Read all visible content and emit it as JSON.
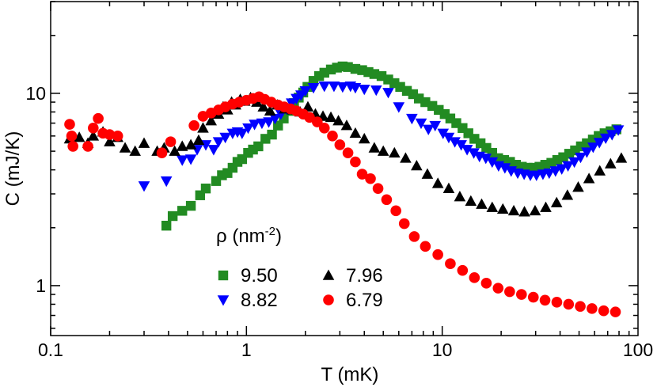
{
  "chart_data": {
    "type": "scatter",
    "xlabel": "T  (mK)",
    "ylabel": "C  (mJ/K)",
    "x_scale": "log",
    "y_scale": "log",
    "xlim": [
      0.1,
      100
    ],
    "ylim": [
      0.55,
      30
    ],
    "x_ticks": [
      {
        "v": 0.1,
        "label": "0.1"
      },
      {
        "v": 1,
        "label": "1"
      },
      {
        "v": 10,
        "label": "10"
      },
      {
        "v": 100,
        "label": "100"
      }
    ],
    "y_ticks": [
      {
        "v": 1,
        "label": "1"
      },
      {
        "v": 10,
        "label": "10"
      }
    ],
    "grid": false,
    "legend": {
      "title": "ρ (nm",
      "title_sup": "-2",
      "title_end": ")",
      "placement": "bottom-center"
    },
    "series": [
      {
        "name": "9.50",
        "marker": "square",
        "color": "#228b22",
        "points": [
          [
            0.39,
            2.05
          ],
          [
            0.42,
            2.3
          ],
          [
            0.47,
            2.45
          ],
          [
            0.52,
            2.6
          ],
          [
            0.58,
            2.95
          ],
          [
            0.62,
            3.2
          ],
          [
            0.7,
            3.5
          ],
          [
            0.75,
            3.75
          ],
          [
            0.8,
            3.85
          ],
          [
            0.85,
            4.1
          ],
          [
            0.9,
            4.4
          ],
          [
            0.95,
            4.55
          ],
          [
            1.02,
            4.9
          ],
          [
            1.08,
            5.1
          ],
          [
            1.15,
            5.3
          ],
          [
            1.25,
            5.8
          ],
          [
            1.35,
            6.1
          ],
          [
            1.45,
            6.8
          ],
          [
            1.55,
            7.4
          ],
          [
            1.65,
            8.1
          ],
          [
            1.75,
            8.9
          ],
          [
            1.85,
            9.5
          ],
          [
            1.95,
            10.1
          ],
          [
            2.05,
            10.8
          ],
          [
            2.2,
            11.6
          ],
          [
            2.35,
            12.3
          ],
          [
            2.5,
            12.8
          ],
          [
            2.7,
            13.3
          ],
          [
            2.9,
            13.6
          ],
          [
            3.1,
            13.8
          ],
          [
            3.3,
            13.7
          ],
          [
            3.6,
            13.4
          ],
          [
            3.9,
            13.2
          ],
          [
            4.2,
            12.9
          ],
          [
            4.5,
            12.6
          ],
          [
            4.9,
            12.3
          ],
          [
            5.3,
            11.8
          ],
          [
            5.7,
            11.3
          ],
          [
            6.1,
            10.8
          ],
          [
            6.6,
            10.3
          ],
          [
            7.1,
            9.9
          ],
          [
            7.6,
            9.4
          ],
          [
            8.2,
            9.0
          ],
          [
            8.9,
            8.6
          ],
          [
            9.6,
            8.2
          ],
          [
            10.3,
            7.8
          ],
          [
            11.0,
            7.4
          ],
          [
            11.8,
            7.0
          ],
          [
            12.7,
            6.6
          ],
          [
            13.6,
            6.2
          ],
          [
            14.6,
            5.8
          ],
          [
            15.7,
            5.5
          ],
          [
            16.8,
            5.2
          ],
          [
            18,
            4.9
          ],
          [
            19.3,
            4.6
          ],
          [
            20.7,
            4.5
          ],
          [
            22.2,
            4.4
          ],
          [
            23.8,
            4.25
          ],
          [
            25.5,
            4.15
          ],
          [
            27.3,
            4.1
          ],
          [
            29.3,
            4.1
          ],
          [
            31.4,
            4.15
          ],
          [
            33.6,
            4.25
          ],
          [
            36.1,
            4.35
          ],
          [
            38.7,
            4.5
          ],
          [
            41.5,
            4.65
          ],
          [
            44.5,
            4.85
          ],
          [
            47.7,
            5.05
          ],
          [
            51.1,
            5.3
          ],
          [
            54.8,
            5.5
          ],
          [
            58.8,
            5.75
          ],
          [
            63,
            6.0
          ],
          [
            67.5,
            6.2
          ],
          [
            72.4,
            6.35
          ],
          [
            77.6,
            6.5
          ]
        ]
      },
      {
        "name": "8.82",
        "marker": "triangle-down",
        "color": "#0000ff",
        "points": [
          [
            0.3,
            3.3
          ],
          [
            0.39,
            3.5
          ],
          [
            0.47,
            4.5
          ],
          [
            0.52,
            4.55
          ],
          [
            0.56,
            5.1
          ],
          [
            0.62,
            5.4
          ],
          [
            0.68,
            5.1
          ],
          [
            0.72,
            5.6
          ],
          [
            0.78,
            5.9
          ],
          [
            0.85,
            6.2
          ],
          [
            0.9,
            6.3
          ],
          [
            0.95,
            6.2
          ],
          [
            1.02,
            6.6
          ],
          [
            1.1,
            6.9
          ],
          [
            1.2,
            7.0
          ],
          [
            1.3,
            7.1
          ],
          [
            1.4,
            7.4
          ],
          [
            1.5,
            7.8
          ],
          [
            1.6,
            8.3
          ],
          [
            1.7,
            8.9
          ],
          [
            1.8,
            9.4
          ],
          [
            1.9,
            9.8
          ],
          [
            2.0,
            10.3
          ],
          [
            2.2,
            10.7
          ],
          [
            2.5,
            10.9
          ],
          [
            2.8,
            10.9
          ],
          [
            3.1,
            10.8
          ],
          [
            3.4,
            10.9
          ],
          [
            3.6,
            10.7
          ],
          [
            4.0,
            10.5
          ],
          [
            4.6,
            10.4
          ],
          [
            5.3,
            10.1
          ],
          [
            6.0,
            8.5
          ],
          [
            7.0,
            7.4
          ],
          [
            7.8,
            7.0
          ],
          [
            8.5,
            6.5
          ],
          [
            9.2,
            6.8
          ],
          [
            10.1,
            6.2
          ],
          [
            10.8,
            5.9
          ],
          [
            11.6,
            5.6
          ],
          [
            12.5,
            5.4
          ],
          [
            13.4,
            5.1
          ],
          [
            14.5,
            4.9
          ],
          [
            15.5,
            4.7
          ],
          [
            16.7,
            4.6
          ],
          [
            18,
            4.4
          ],
          [
            19.4,
            4.2
          ],
          [
            20.9,
            4.1
          ],
          [
            22.5,
            3.95
          ],
          [
            24.3,
            3.85
          ],
          [
            26.2,
            3.8
          ],
          [
            28.2,
            3.75
          ],
          [
            30.3,
            3.75
          ],
          [
            32.7,
            3.8
          ],
          [
            35.2,
            3.85
          ],
          [
            37.9,
            3.95
          ],
          [
            40.8,
            4.05
          ],
          [
            43.9,
            4.2
          ],
          [
            47.3,
            4.4
          ],
          [
            50.9,
            4.65
          ],
          [
            54.8,
            4.95
          ],
          [
            59,
            5.25
          ],
          [
            63.5,
            5.55
          ],
          [
            68.4,
            5.85
          ],
          [
            73.7,
            6.1
          ],
          [
            79.3,
            6.45
          ]
        ]
      },
      {
        "name": "7.96",
        "marker": "triangle-up",
        "color": "#000000",
        "points": [
          [
            0.125,
            5.8
          ],
          [
            0.14,
            5.9
          ],
          [
            0.155,
            5.5
          ],
          [
            0.165,
            6.0
          ],
          [
            0.185,
            6.3
          ],
          [
            0.2,
            5.6
          ],
          [
            0.22,
            5.9
          ],
          [
            0.24,
            5.2
          ],
          [
            0.27,
            5.0
          ],
          [
            0.3,
            5.5
          ],
          [
            0.35,
            5.0
          ],
          [
            0.38,
            5.2
          ],
          [
            0.43,
            5.0
          ],
          [
            0.47,
            5.3
          ],
          [
            0.52,
            5.4
          ],
          [
            0.57,
            5.7
          ],
          [
            0.6,
            6.6
          ],
          [
            0.66,
            7.2
          ],
          [
            0.72,
            7.8
          ],
          [
            0.76,
            8.5
          ],
          [
            0.8,
            8.2
          ],
          [
            0.84,
            9.0
          ],
          [
            0.88,
            8.7
          ],
          [
            0.93,
            9.3
          ],
          [
            0.98,
            9.1
          ],
          [
            1.05,
            9.5
          ],
          [
            1.13,
            9.0
          ],
          [
            1.22,
            8.5
          ],
          [
            1.32,
            8.1
          ],
          [
            1.44,
            8.7
          ],
          [
            1.57,
            8.3
          ],
          [
            1.72,
            8.2
          ],
          [
            1.88,
            8.0
          ],
          [
            2.06,
            8.5
          ],
          [
            2.25,
            7.8
          ],
          [
            2.46,
            7.6
          ],
          [
            2.7,
            7.5
          ],
          [
            2.95,
            7.2
          ],
          [
            3.25,
            6.8
          ],
          [
            3.6,
            6.2
          ],
          [
            4.0,
            5.8
          ],
          [
            4.5,
            5.2
          ],
          [
            5.0,
            5.0
          ],
          [
            5.7,
            4.9
          ],
          [
            6.5,
            4.6
          ],
          [
            7.4,
            4.2
          ],
          [
            8.4,
            3.8
          ],
          [
            9.5,
            3.4
          ],
          [
            10.8,
            3.2
          ],
          [
            12.3,
            2.9
          ],
          [
            14,
            2.75
          ],
          [
            15.9,
            2.65
          ],
          [
            18,
            2.55
          ],
          [
            20.4,
            2.5
          ],
          [
            23.2,
            2.45
          ],
          [
            26.3,
            2.42
          ],
          [
            29.8,
            2.45
          ],
          [
            33.8,
            2.55
          ],
          [
            38.4,
            2.7
          ],
          [
            43.6,
            2.95
          ],
          [
            49.5,
            3.25
          ],
          [
            56.2,
            3.6
          ],
          [
            63.8,
            3.95
          ],
          [
            72.4,
            4.3
          ],
          [
            82.2,
            4.6
          ]
        ]
      },
      {
        "name": "6.79",
        "marker": "circle",
        "color": "#ff0000",
        "points": [
          [
            0.125,
            6.9
          ],
          [
            0.128,
            6.0
          ],
          [
            0.13,
            5.3
          ],
          [
            0.155,
            5.3
          ],
          [
            0.165,
            6.6
          ],
          [
            0.175,
            7.4
          ],
          [
            0.185,
            6.2
          ],
          [
            0.2,
            6.1
          ],
          [
            0.22,
            6.0
          ],
          [
            0.37,
            4.9
          ],
          [
            0.41,
            5.6
          ],
          [
            0.54,
            6.8
          ],
          [
            0.6,
            7.6
          ],
          [
            0.66,
            7.9
          ],
          [
            0.72,
            8.2
          ],
          [
            0.78,
            8.5
          ],
          [
            0.85,
            8.8
          ],
          [
            0.92,
            9.0
          ],
          [
            1.0,
            9.2
          ],
          [
            1.08,
            9.4
          ],
          [
            1.16,
            9.6
          ],
          [
            1.24,
            9.3
          ],
          [
            1.34,
            9.0
          ],
          [
            1.45,
            8.7
          ],
          [
            1.56,
            8.5
          ],
          [
            1.68,
            8.3
          ],
          [
            1.8,
            8.1
          ],
          [
            1.95,
            7.8
          ],
          [
            2.1,
            7.5
          ],
          [
            2.3,
            7.1
          ],
          [
            2.5,
            6.6
          ],
          [
            2.75,
            6.0
          ],
          [
            3.0,
            5.4
          ],
          [
            3.3,
            4.9
          ],
          [
            3.6,
            4.4
          ],
          [
            3.9,
            3.8
          ],
          [
            4.3,
            3.6
          ],
          [
            4.7,
            3.2
          ],
          [
            5.2,
            2.8
          ],
          [
            5.8,
            2.45
          ],
          [
            6.4,
            2.1
          ],
          [
            7.2,
            1.8
          ],
          [
            8.2,
            1.6
          ],
          [
            9.5,
            1.45
          ],
          [
            11,
            1.3
          ],
          [
            12.7,
            1.2
          ],
          [
            14.6,
            1.1
          ],
          [
            16.8,
            1.03
          ],
          [
            19.3,
            0.97
          ],
          [
            22.1,
            0.93
          ],
          [
            25.4,
            0.9
          ],
          [
            29.2,
            0.87
          ],
          [
            33.5,
            0.84
          ],
          [
            38.5,
            0.82
          ],
          [
            44.2,
            0.8
          ],
          [
            50.7,
            0.78
          ],
          [
            58.2,
            0.76
          ],
          [
            66.8,
            0.74
          ],
          [
            76.7,
            0.73
          ]
        ]
      }
    ]
  }
}
